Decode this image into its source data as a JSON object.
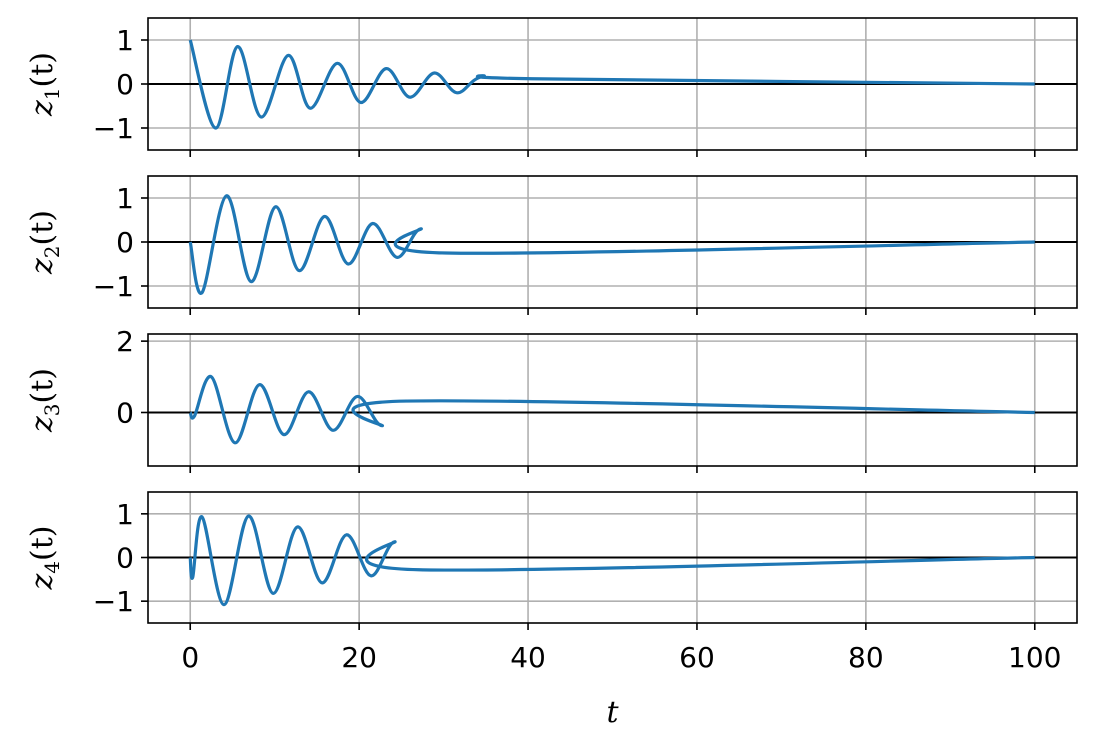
{
  "chart_data": {
    "type": "line",
    "layout": "4 stacked subplots, shared x-axis",
    "grid": true,
    "zero_line": true,
    "line_color": "#1f77b4",
    "grid_color": "#b0b0b0",
    "xlabel": "t",
    "xlim": [
      -5,
      105
    ],
    "x_ticks": [
      "0",
      "20",
      "40",
      "60",
      "80",
      "100"
    ],
    "subplots": [
      {
        "ylabel": {
          "base": "z",
          "sub": "1",
          "rest": "(t)"
        },
        "ylim": [
          -1.5,
          1.5
        ],
        "y_ticks": [
          {
            "value": 1,
            "label": "1"
          },
          {
            "value": 0,
            "label": "0"
          },
          {
            "value": -1,
            "label": "−1"
          }
        ],
        "gridlines": [
          1,
          0,
          -1
        ],
        "signal": {
          "amplitude": 1.0,
          "phase": 0,
          "decay": 0.045,
          "period": 3.0
        },
        "points": [
          [
            0,
            1.0
          ],
          [
            3,
            -1.0
          ],
          [
            5.6,
            0.85
          ],
          [
            8.4,
            -0.75
          ],
          [
            11.6,
            0.65
          ],
          [
            14.2,
            -0.55
          ],
          [
            17.4,
            0.47
          ],
          [
            20.2,
            -0.42
          ],
          [
            23.2,
            0.35
          ],
          [
            26,
            -0.3
          ],
          [
            28.9,
            0.25
          ],
          [
            31.6,
            -0.2
          ],
          [
            34.6,
            0.17
          ],
          [
            40.5,
            0.12
          ],
          [
            100,
            0.0
          ]
        ]
      },
      {
        "ylabel": {
          "base": "z",
          "sub": "2",
          "rest": "(t)"
        },
        "ylim": [
          -1.5,
          1.5
        ],
        "y_ticks": [
          {
            "value": 1,
            "label": "1"
          },
          {
            "value": 0,
            "label": "0"
          },
          {
            "value": -1,
            "label": "−1"
          }
        ],
        "gridlines": [
          1,
          0,
          -1
        ],
        "signal": {
          "amplitude": 1.0,
          "phase": 0,
          "decay": 0.045,
          "period": 3.0
        },
        "points": [
          [
            0,
            0.0
          ],
          [
            1.4,
            -1.15
          ],
          [
            4.3,
            1.05
          ],
          [
            7.2,
            -0.9
          ],
          [
            10.1,
            0.8
          ],
          [
            12.9,
            -0.65
          ],
          [
            15.9,
            0.58
          ],
          [
            18.7,
            -0.5
          ],
          [
            21.6,
            0.42
          ],
          [
            24.5,
            -0.35
          ],
          [
            27.3,
            0.3
          ],
          [
            30.3,
            -0.25
          ],
          [
            100,
            0.0
          ]
        ]
      },
      {
        "ylabel": {
          "base": "z",
          "sub": "3",
          "rest": "(t)"
        },
        "ylim": [
          -1.5,
          2.2
        ],
        "y_ticks": [
          {
            "value": 2,
            "label": "2"
          },
          {
            "value": 0,
            "label": "0"
          }
        ],
        "gridlines": [
          2,
          0
        ],
        "signal": {
          "amplitude": 1.0,
          "phase": 0,
          "decay": 0.045,
          "period": 3.0
        },
        "points": [
          [
            0,
            0.0
          ],
          [
            0.5,
            -0.1
          ],
          [
            2.5,
            1.0
          ],
          [
            5.3,
            -0.85
          ],
          [
            8.2,
            0.78
          ],
          [
            11.1,
            -0.62
          ],
          [
            14.0,
            0.58
          ],
          [
            16.9,
            -0.5
          ],
          [
            19.8,
            0.45
          ],
          [
            22.7,
            -0.37
          ],
          [
            25.6,
            0.32
          ],
          [
            100,
            0.0
          ]
        ]
      },
      {
        "ylabel": {
          "base": "z",
          "sub": "4",
          "rest": "(t)"
        },
        "ylim": [
          -1.5,
          1.5
        ],
        "y_ticks": [
          {
            "value": 1,
            "label": "1"
          },
          {
            "value": 0,
            "label": "0"
          },
          {
            "value": -1,
            "label": "−1"
          }
        ],
        "gridlines": [
          1,
          0,
          -1
        ],
        "signal": {
          "amplitude": 1.0,
          "phase": 0,
          "decay": 0.045,
          "period": 3.0
        },
        "points": [
          [
            0,
            0.0
          ],
          [
            0.3,
            -0.45
          ],
          [
            1.4,
            0.93
          ],
          [
            4.0,
            -1.08
          ],
          [
            6.9,
            0.95
          ],
          [
            9.8,
            -0.82
          ],
          [
            12.7,
            0.7
          ],
          [
            15.6,
            -0.58
          ],
          [
            18.5,
            0.52
          ],
          [
            21.4,
            -0.42
          ],
          [
            24.2,
            0.36
          ],
          [
            27.1,
            -0.28
          ],
          [
            100,
            0.0
          ]
        ]
      }
    ]
  }
}
